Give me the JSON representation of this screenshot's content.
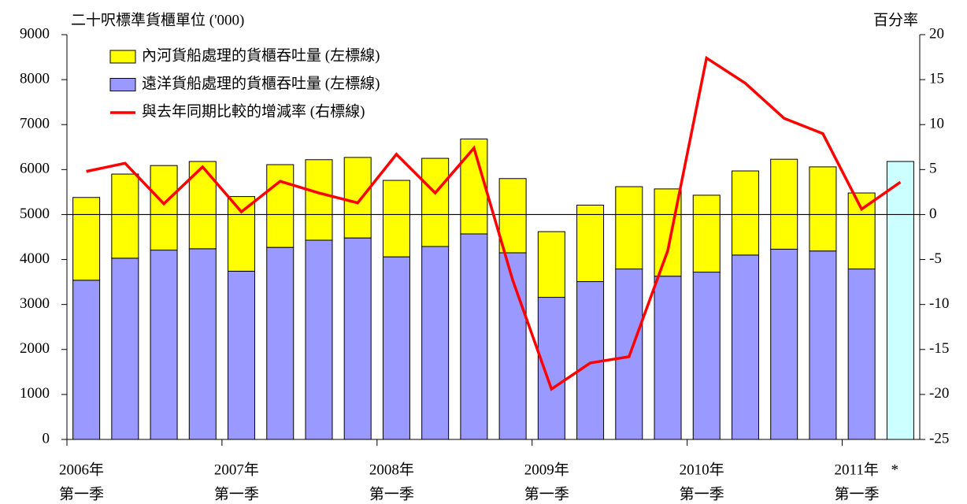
{
  "chart_data": {
    "type": "bar-line",
    "title": "二十呎標準貨櫃單位 ('000)",
    "y2_title": "百分率",
    "annotation": "*",
    "categories": [
      {
        "year": "2006年",
        "quarter": "第一季"
      },
      null,
      null,
      null,
      {
        "year": "2007年",
        "quarter": "第一季"
      },
      null,
      null,
      null,
      {
        "year": "2008年",
        "quarter": "第一季"
      },
      null,
      null,
      null,
      {
        "year": "2009年",
        "quarter": "第一季"
      },
      null,
      null,
      null,
      {
        "year": "2010年",
        "quarter": "第一季"
      },
      null,
      null,
      null,
      {
        "year": "2011年",
        "quarter": "第一季"
      },
      null
    ],
    "series": [
      {
        "name": "遠洋貨船處理的貨櫃吞吐量 (左標線)",
        "color": "#9999ff",
        "kind": "bar",
        "values": [
          3540,
          4030,
          4210,
          4240,
          3740,
          4270,
          4430,
          4480,
          4060,
          4290,
          4570,
          4150,
          3160,
          3510,
          3790,
          3630,
          3720,
          4100,
          4230,
          4190,
          3790,
          null
        ]
      },
      {
        "name": "內河貨船處理的貨櫃吞吐量 (左標線)",
        "color": "#ffff00",
        "kind": "bar",
        "values": [
          1840,
          1870,
          1880,
          1940,
          1660,
          1840,
          1790,
          1790,
          1700,
          1960,
          2110,
          1650,
          1460,
          1700,
          1830,
          1940,
          1710,
          1870,
          2000,
          1870,
          1690,
          null
        ]
      },
      {
        "color": "#ccffff",
        "kind": "bar",
        "values": [
          null,
          null,
          null,
          null,
          null,
          null,
          null,
          null,
          null,
          null,
          null,
          null,
          null,
          null,
          null,
          null,
          null,
          null,
          null,
          null,
          null,
          6180
        ]
      },
      {
        "name": "與去年同期比較的增減率 (右標線)",
        "color": "#ff0000",
        "kind": "line",
        "axis": "y2",
        "values": [
          4.8,
          5.7,
          1.2,
          5.3,
          0.3,
          3.7,
          2.4,
          1.3,
          6.7,
          2.4,
          7.4,
          -7.3,
          -19.4,
          -16.5,
          -15.8,
          -4.0,
          17.4,
          14.6,
          10.7,
          9.0,
          0.6,
          3.6
        ]
      }
    ],
    "ylim": [
      0,
      9000
    ],
    "yticks": [
      0,
      1000,
      2000,
      3000,
      4000,
      5000,
      6000,
      7000,
      8000,
      9000
    ],
    "y2lim": [
      -25,
      20
    ],
    "y2ticks": [
      -25,
      -20,
      -15,
      -10,
      -5,
      0,
      5,
      10,
      15,
      20
    ]
  }
}
